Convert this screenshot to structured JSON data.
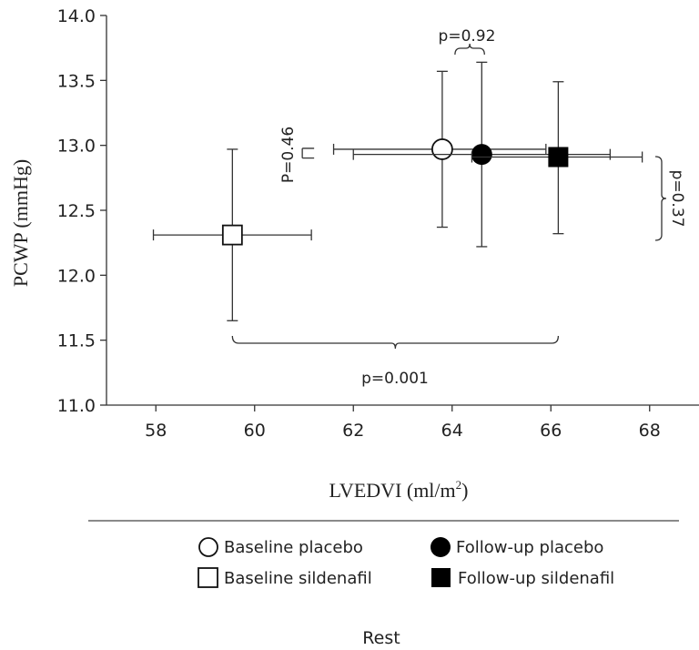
{
  "chart_data": {
    "type": "scatter",
    "xlabel": "LVEDVI (ml/m",
    "xlabel_sup": "2",
    "xlabel_end": ")",
    "ylabel": "PCWP (mmHg)",
    "xlim": [
      57,
      69
    ],
    "ylim": [
      11.0,
      14.0
    ],
    "xticks": [
      58,
      60,
      62,
      64,
      66,
      68
    ],
    "xtick_labels": [
      "58",
      "60",
      "62",
      "64",
      "66",
      "68"
    ],
    "yticks": [
      11.0,
      11.5,
      12.0,
      12.5,
      13.0,
      13.5,
      14.0
    ],
    "ytick_labels": [
      "11.0",
      "11.5",
      "12.0",
      "12.5",
      "13.0",
      "13.5",
      "14.0"
    ],
    "series": [
      {
        "name": "Baseline placebo",
        "marker": "circle-open",
        "x": 63.8,
        "y": 12.97,
        "x_err": [
          61.6,
          65.9
        ],
        "y_err": [
          12.37,
          13.57
        ]
      },
      {
        "name": "Follow-up placebo",
        "marker": "circle-filled",
        "x": 64.6,
        "y": 12.93,
        "x_err": [
          62.0,
          67.2
        ],
        "y_err": [
          12.22,
          13.64
        ]
      },
      {
        "name": "Baseline sildenafil",
        "marker": "square-open",
        "x": 59.55,
        "y": 12.31,
        "x_err": [
          57.95,
          61.15
        ],
        "y_err": [
          11.65,
          12.97
        ]
      },
      {
        "name": "Follow-up sildenafil",
        "marker": "square-filled",
        "x": 66.15,
        "y": 12.91,
        "x_err": [
          64.4,
          67.85
        ],
        "y_err": [
          12.32,
          13.49
        ]
      }
    ],
    "annotations": [
      {
        "text": "p=0.92",
        "between": [
          "Baseline placebo",
          "Follow-up placebo"
        ]
      },
      {
        "text": "P=0.46",
        "between": [
          "Baseline placebo",
          "Follow-up placebo"
        ]
      },
      {
        "text": "p=0.37",
        "between": [
          "Baseline sildenafil",
          "Follow-up sildenafil"
        ]
      },
      {
        "text": "p=0.001",
        "between": [
          "Baseline sildenafil",
          "Follow-up sildenafil"
        ]
      }
    ],
    "legend_position": "bottom",
    "grid": false
  },
  "footer_label": "Rest"
}
